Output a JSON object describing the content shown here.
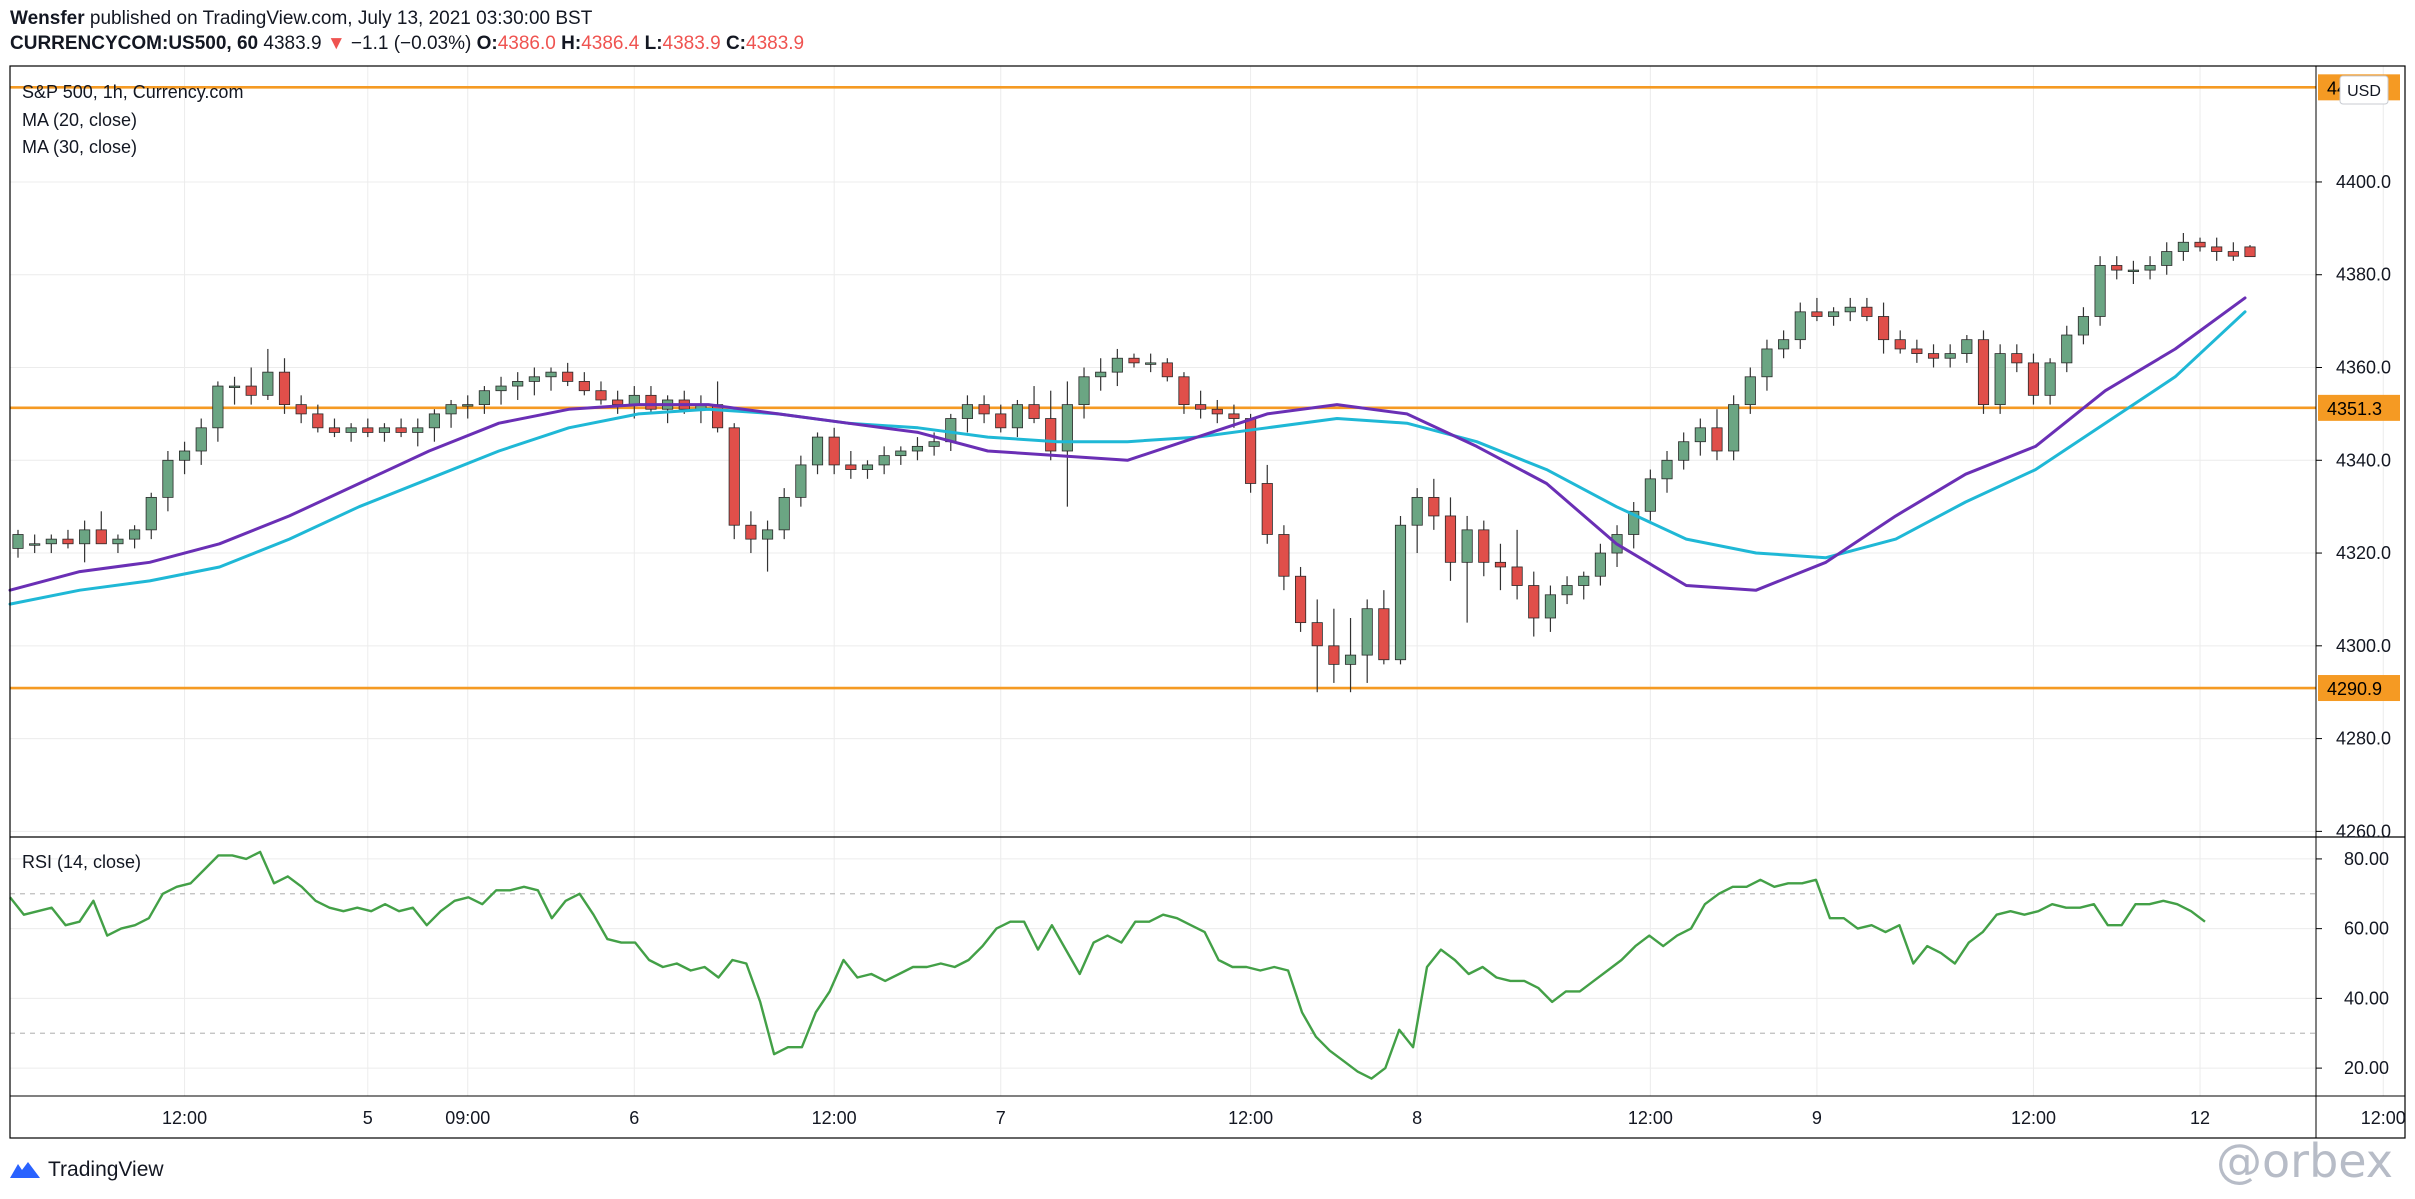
{
  "header": {
    "publisher": "Wensfer",
    "published_text": "published on TradingView.com, July 13, 2021 03:30:00 BST",
    "symbol": "CURRENCYCOM:US500, 60",
    "last": "4383.9",
    "change_arrow": "▼",
    "change": "−1.1 (−0.03%)",
    "o_label": "O:",
    "o": "4386.0",
    "h_label": "H:",
    "h": "4386.4",
    "l_label": "L:",
    "l": "4383.9",
    "c_label": "C:",
    "c": "4383.9"
  },
  "legend": {
    "title": "S&P 500, 1h, Currency.com",
    "ma20": "MA (20, close)",
    "ma30": "MA (30, close)",
    "rsi": "RSI (14, close)",
    "currency": "USD"
  },
  "footer": {
    "brand": "TradingView",
    "watermark": "@orbex"
  },
  "colors": {
    "up": "#6ba583",
    "down": "#e04f4a",
    "ma20": "#6a2fb5",
    "ma30": "#1fb8d6",
    "level": "#f59a23",
    "rsi": "#43a047"
  },
  "chart_data": [
    {
      "type": "candlestick",
      "title": "S&P 500, 1h, Currency.com",
      "x_ticks": [
        "12:00",
        "5",
        "09:00",
        "6",
        "12:00",
        "7",
        "12:00",
        "8",
        "12:00",
        "9",
        "12:00",
        "12",
        "12:00"
      ],
      "y_ticks": [
        4260.0,
        4280.0,
        4300.0,
        4320.0,
        4340.0,
        4360.0,
        4380.0,
        4400.0
      ],
      "ylim": [
        4259,
        4425
      ],
      "price_levels": [
        4420.4,
        4351.3,
        4290.9
      ],
      "last_price": 4383.9,
      "ohlc": [
        [
          4321,
          4325,
          4319,
          4324
        ],
        [
          4322,
          4324,
          4320,
          4322
        ],
        [
          4322,
          4324,
          4320,
          4323
        ],
        [
          4323,
          4325,
          4321,
          4322
        ],
        [
          4322,
          4327,
          4318,
          4325
        ],
        [
          4325,
          4329,
          4322,
          4322
        ],
        [
          4322,
          4324,
          4320,
          4323
        ],
        [
          4323,
          4326,
          4321,
          4325
        ],
        [
          4325,
          4333,
          4323,
          4332
        ],
        [
          4332,
          4342,
          4329,
          4340
        ],
        [
          4340,
          4344,
          4337,
          4342
        ],
        [
          4342,
          4349,
          4339,
          4347
        ],
        [
          4347,
          4357,
          4344,
          4356
        ],
        [
          4356,
          4358,
          4352,
          4356
        ],
        [
          4356,
          4360,
          4352,
          4354
        ],
        [
          4354,
          4364,
          4353,
          4359
        ],
        [
          4359,
          4362,
          4350,
          4352
        ],
        [
          4352,
          4354,
          4348,
          4350
        ],
        [
          4350,
          4352,
          4346,
          4347
        ],
        [
          4347,
          4349,
          4345,
          4346
        ],
        [
          4346,
          4348,
          4344,
          4347
        ],
        [
          4347,
          4349,
          4345,
          4346
        ],
        [
          4346,
          4348,
          4344,
          4347
        ],
        [
          4347,
          4349,
          4345,
          4346
        ],
        [
          4346,
          4349,
          4343,
          4347
        ],
        [
          4347,
          4351,
          4344,
          4350
        ],
        [
          4350,
          4353,
          4347,
          4352
        ],
        [
          4352,
          4354,
          4349,
          4352
        ],
        [
          4352,
          4356,
          4350,
          4355
        ],
        [
          4355,
          4358,
          4352,
          4356
        ],
        [
          4356,
          4359,
          4353,
          4357
        ],
        [
          4357,
          4360,
          4354,
          4358
        ],
        [
          4358,
          4360,
          4355,
          4359
        ],
        [
          4359,
          4361,
          4356,
          4357
        ],
        [
          4357,
          4359,
          4354,
          4355
        ],
        [
          4355,
          4357,
          4352,
          4353
        ],
        [
          4353,
          4355,
          4350,
          4352
        ],
        [
          4352,
          4356,
          4349,
          4354
        ],
        [
          4354,
          4356,
          4350,
          4351
        ],
        [
          4351,
          4354,
          4348,
          4353
        ],
        [
          4353,
          4355,
          4350,
          4351
        ],
        [
          4351,
          4354,
          4348,
          4352
        ],
        [
          4352,
          4357,
          4346,
          4347
        ],
        [
          4347,
          4348,
          4323,
          4326
        ],
        [
          4326,
          4329,
          4320,
          4323
        ],
        [
          4323,
          4327,
          4316,
          4325
        ],
        [
          4325,
          4334,
          4323,
          4332
        ],
        [
          4332,
          4341,
          4330,
          4339
        ],
        [
          4339,
          4346,
          4337,
          4345
        ],
        [
          4345,
          4347,
          4337,
          4339
        ],
        [
          4339,
          4342,
          4336,
          4338
        ],
        [
          4338,
          4340,
          4336,
          4339
        ],
        [
          4339,
          4343,
          4337,
          4341
        ],
        [
          4341,
          4343,
          4339,
          4342
        ],
        [
          4342,
          4345,
          4340,
          4343
        ],
        [
          4343,
          4346,
          4341,
          4344
        ],
        [
          4344,
          4350,
          4342,
          4349
        ],
        [
          4349,
          4354,
          4346,
          4352
        ],
        [
          4352,
          4354,
          4348,
          4350
        ],
        [
          4350,
          4352,
          4346,
          4347
        ],
        [
          4347,
          4353,
          4345,
          4352
        ],
        [
          4352,
          4356,
          4348,
          4349
        ],
        [
          4349,
          4355,
          4340,
          4342
        ],
        [
          4342,
          4357,
          4330,
          4352
        ],
        [
          4352,
          4360,
          4349,
          4358
        ],
        [
          4358,
          4362,
          4355,
          4359
        ],
        [
          4359,
          4364,
          4356,
          4362
        ],
        [
          4362,
          4363,
          4360,
          4361
        ],
        [
          4361,
          4363,
          4359,
          4361
        ],
        [
          4361,
          4362,
          4357,
          4358
        ],
        [
          4358,
          4359,
          4350,
          4352
        ],
        [
          4352,
          4355,
          4349,
          4351
        ],
        [
          4351,
          4353,
          4348,
          4350
        ],
        [
          4350,
          4352,
          4347,
          4349
        ],
        [
          4349,
          4350,
          4333,
          4335
        ],
        [
          4335,
          4339,
          4322,
          4324
        ],
        [
          4324,
          4326,
          4312,
          4315
        ],
        [
          4315,
          4317,
          4303,
          4305
        ],
        [
          4305,
          4310,
          4290,
          4300
        ],
        [
          4300,
          4308,
          4292,
          4296
        ],
        [
          4296,
          4306,
          4290,
          4298
        ],
        [
          4298,
          4310,
          4292,
          4308
        ],
        [
          4308,
          4312,
          4296,
          4297
        ],
        [
          4297,
          4328,
          4296,
          4326
        ],
        [
          4326,
          4334,
          4320,
          4332
        ],
        [
          4332,
          4336,
          4325,
          4328
        ],
        [
          4328,
          4332,
          4314,
          4318
        ],
        [
          4318,
          4328,
          4305,
          4325
        ],
        [
          4325,
          4327,
          4315,
          4318
        ],
        [
          4318,
          4322,
          4312,
          4317
        ],
        [
          4317,
          4325,
          4310,
          4313
        ],
        [
          4313,
          4316,
          4302,
          4306
        ],
        [
          4306,
          4313,
          4303,
          4311
        ],
        [
          4311,
          4315,
          4309,
          4313
        ],
        [
          4313,
          4316,
          4310,
          4315
        ],
        [
          4315,
          4322,
          4313,
          4320
        ],
        [
          4320,
          4326,
          4317,
          4324
        ],
        [
          4324,
          4331,
          4321,
          4329
        ],
        [
          4329,
          4338,
          4327,
          4336
        ],
        [
          4336,
          4342,
          4333,
          4340
        ],
        [
          4340,
          4346,
          4338,
          4344
        ],
        [
          4344,
          4349,
          4341,
          4347
        ],
        [
          4347,
          4351,
          4340,
          4342
        ],
        [
          4342,
          4354,
          4340,
          4352
        ],
        [
          4352,
          4360,
          4350,
          4358
        ],
        [
          4358,
          4366,
          4355,
          4364
        ],
        [
          4364,
          4368,
          4362,
          4366
        ],
        [
          4366,
          4374,
          4364,
          4372
        ],
        [
          4372,
          4375,
          4370,
          4371
        ],
        [
          4371,
          4373,
          4369,
          4372
        ],
        [
          4372,
          4375,
          4370,
          4373
        ],
        [
          4373,
          4375,
          4370,
          4371
        ],
        [
          4371,
          4374,
          4363,
          4366
        ],
        [
          4366,
          4368,
          4363,
          4364
        ],
        [
          4364,
          4366,
          4361,
          4363
        ],
        [
          4363,
          4365,
          4360,
          4362
        ],
        [
          4362,
          4365,
          4360,
          4363
        ],
        [
          4363,
          4367,
          4361,
          4366
        ],
        [
          4366,
          4368,
          4350,
          4352
        ],
        [
          4352,
          4365,
          4350,
          4363
        ],
        [
          4363,
          4365,
          4359,
          4361
        ],
        [
          4361,
          4363,
          4352,
          4354
        ],
        [
          4354,
          4362,
          4352,
          4361
        ],
        [
          4361,
          4369,
          4359,
          4367
        ],
        [
          4367,
          4373,
          4365,
          4371
        ],
        [
          4371,
          4384,
          4369,
          4382
        ],
        [
          4382,
          4384,
          4379,
          4381
        ],
        [
          4381,
          4383,
          4378,
          4381
        ],
        [
          4381,
          4384,
          4379,
          4382
        ],
        [
          4382,
          4387,
          4380,
          4385
        ],
        [
          4385,
          4389,
          4383,
          4387
        ],
        [
          4387,
          4388,
          4385,
          4386
        ],
        [
          4386,
          4388,
          4383,
          4385
        ],
        [
          4385,
          4387,
          4383,
          4384
        ],
        [
          4386,
          4386.4,
          4383.9,
          4383.9
        ]
      ],
      "ma20_y": [
        4312,
        4316,
        4318,
        4322,
        4328,
        4335,
        4342,
        4348,
        4351,
        4352,
        4352,
        4350,
        4348,
        4346,
        4342,
        4341,
        4340,
        4345,
        4350,
        4352,
        4350,
        4343,
        4335,
        4322,
        4313,
        4312,
        4318,
        4328,
        4337,
        4343,
        4355,
        4364,
        4375
      ],
      "ma30_y": [
        4309,
        4312,
        4314,
        4317,
        4323,
        4330,
        4336,
        4342,
        4347,
        4350,
        4351,
        4350,
        4348,
        4347,
        4345,
        4344,
        4344,
        4345,
        4347,
        4349,
        4348,
        4344,
        4338,
        4330,
        4323,
        4320,
        4319,
        4323,
        4331,
        4338,
        4348,
        4358,
        4372
      ]
    },
    {
      "type": "line",
      "title": "RSI (14, close)",
      "y_ticks": [
        20.0,
        40.0,
        60.0,
        80.0
      ],
      "ylim": [
        12,
        86
      ],
      "bands": [
        30,
        70
      ],
      "rsi": [
        69,
        64,
        65,
        66,
        61,
        62,
        68,
        58,
        60,
        61,
        63,
        70,
        72,
        73,
        77,
        81,
        81,
        80,
        82,
        73,
        75,
        72,
        68,
        66,
        65,
        66,
        65,
        67,
        65,
        66,
        61,
        65,
        68,
        69,
        67,
        71,
        71,
        72,
        71,
        63,
        68,
        70,
        64,
        57,
        56,
        56,
        51,
        49,
        50,
        48,
        49,
        46,
        51,
        50,
        39,
        24,
        26,
        26,
        36,
        42,
        51,
        46,
        47,
        45,
        47,
        49,
        49,
        50,
        49,
        51,
        55,
        60,
        62,
        62,
        54,
        61,
        54,
        47,
        56,
        58,
        56,
        62,
        62,
        64,
        63,
        61,
        59,
        51,
        49,
        49,
        48,
        49,
        48,
        36,
        29,
        25,
        22,
        19,
        17,
        20,
        31,
        26,
        49,
        54,
        51,
        47,
        49,
        46,
        45,
        45,
        43,
        39,
        42,
        42,
        45,
        48,
        51,
        55,
        58,
        55,
        58,
        60,
        67,
        70,
        72,
        72,
        74,
        72,
        73,
        73,
        74,
        63,
        63,
        60,
        61,
        59,
        61,
        50,
        55,
        53,
        50,
        56,
        59,
        64,
        65,
        64,
        65,
        67,
        66,
        66,
        67,
        61,
        61,
        67,
        67,
        68,
        67,
        65,
        62
      ]
    }
  ]
}
